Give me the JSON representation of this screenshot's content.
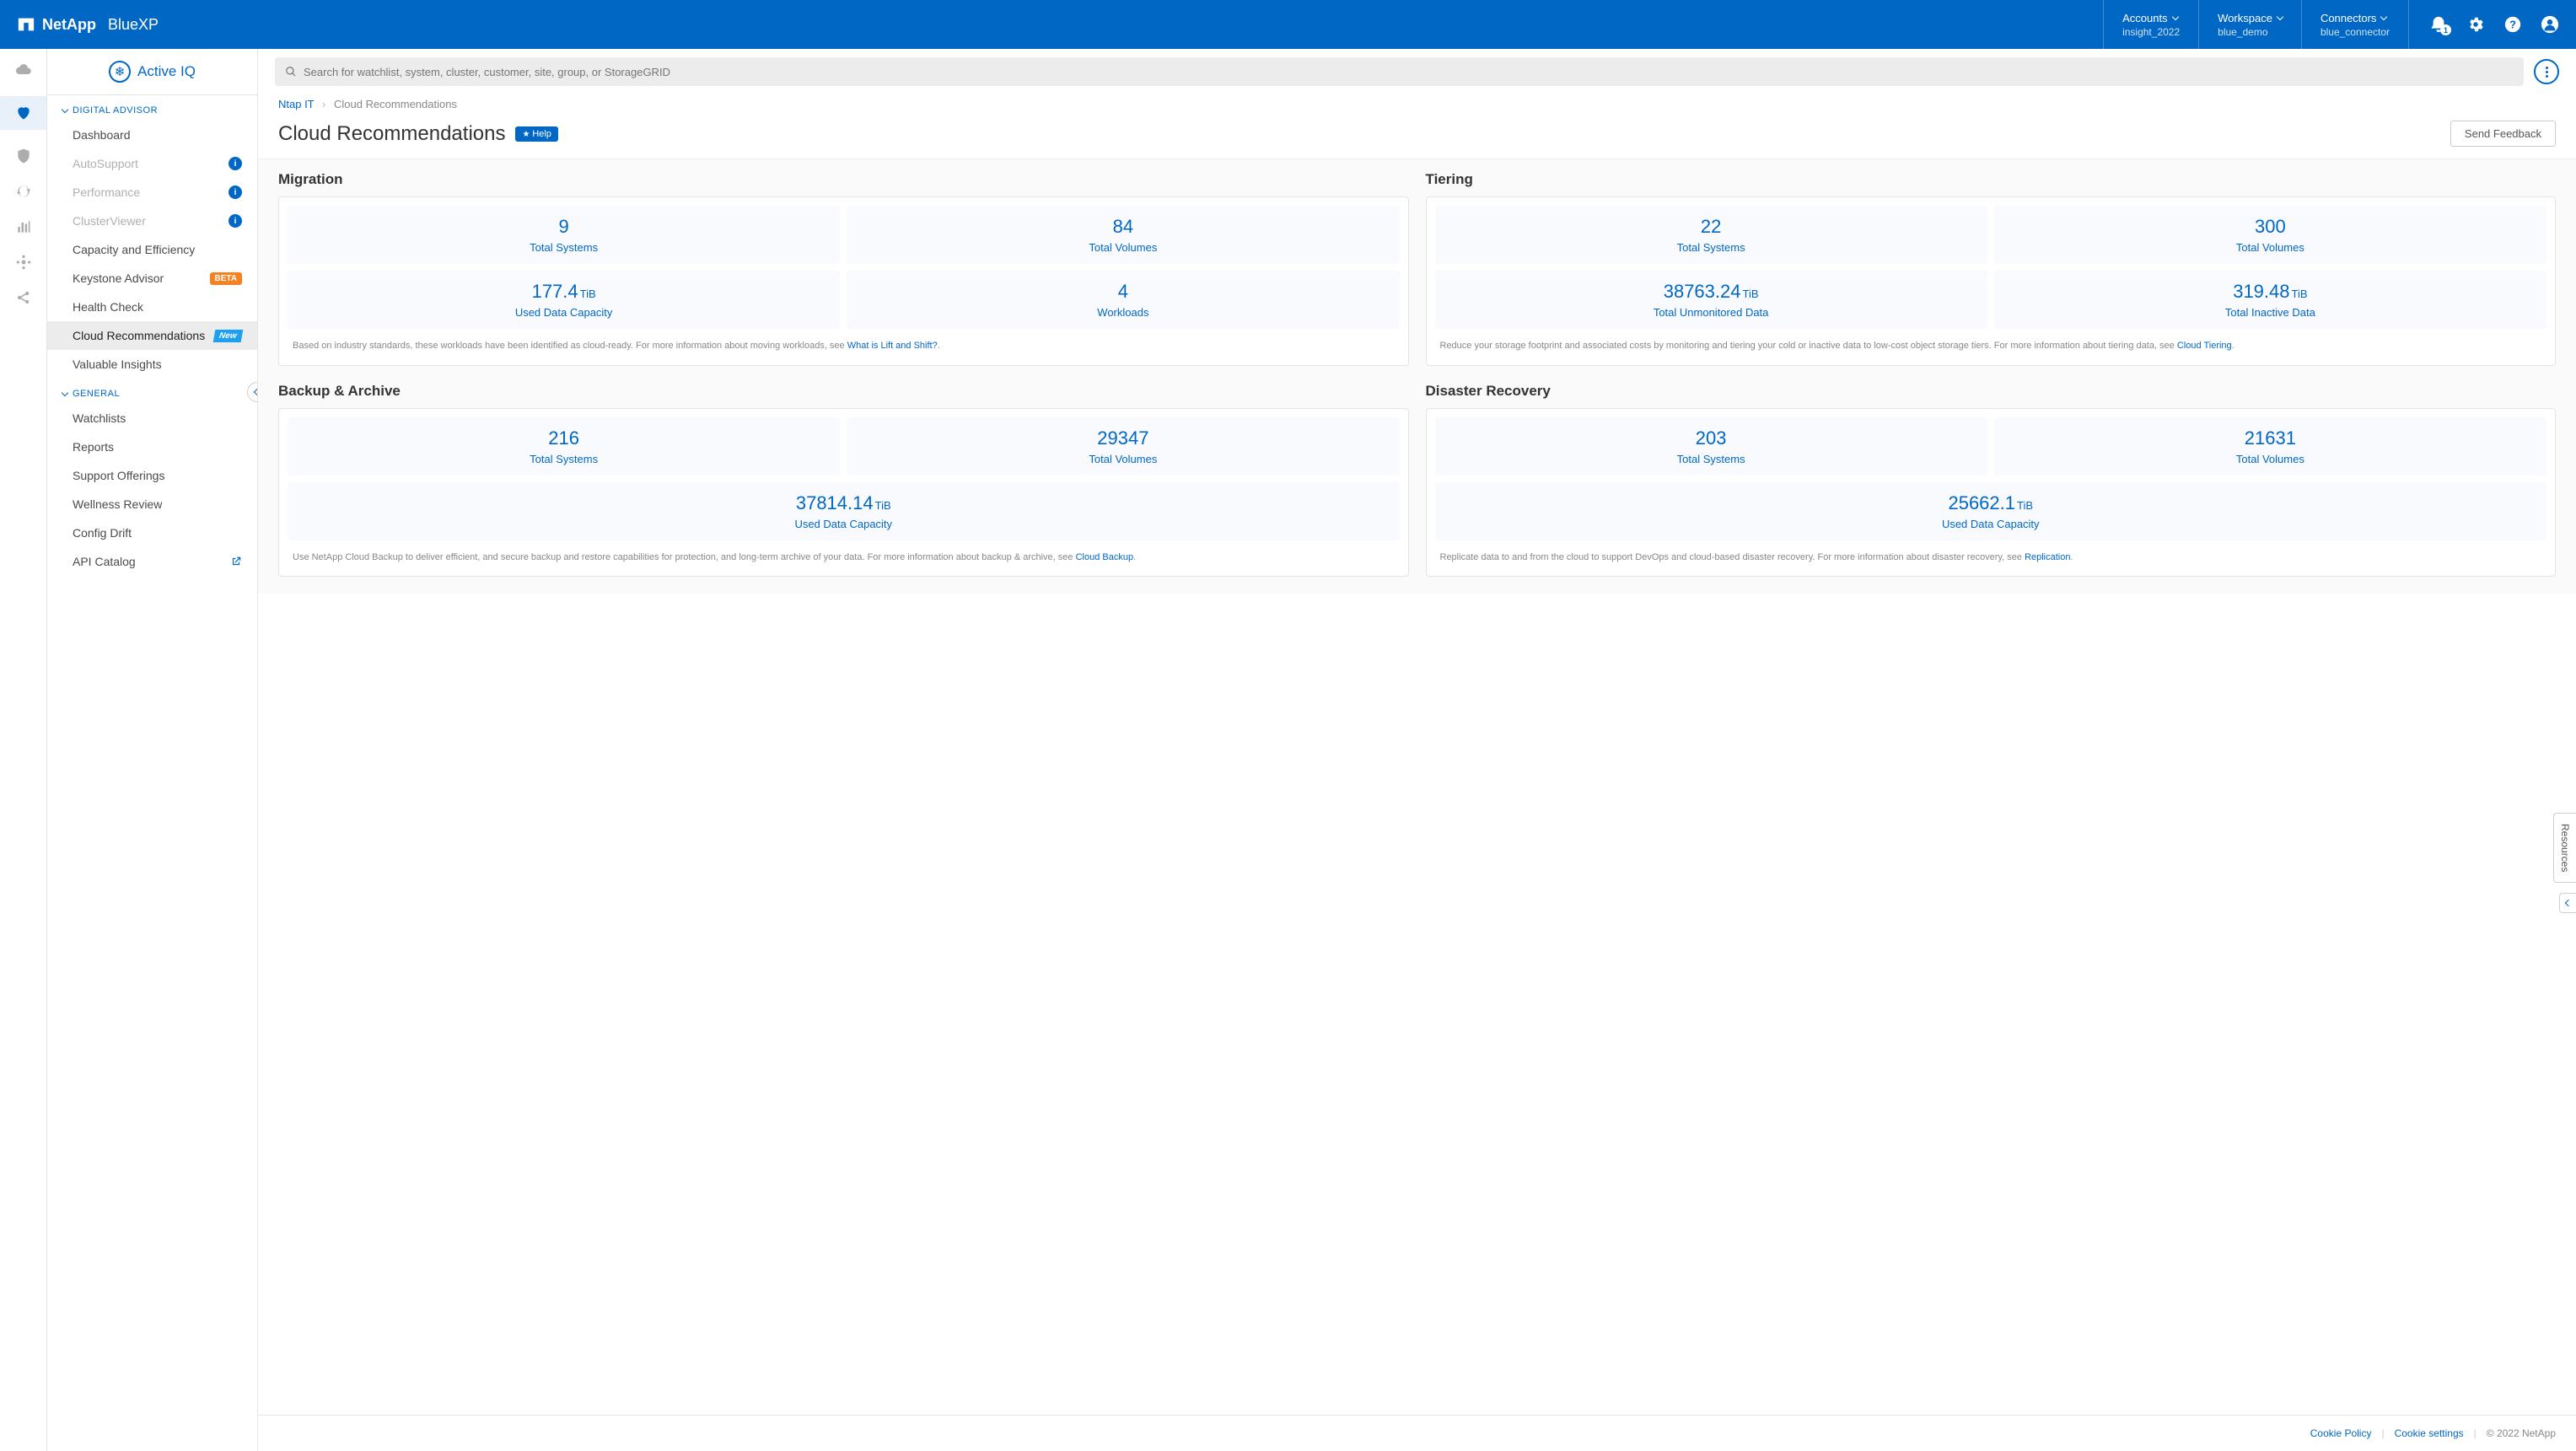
{
  "header": {
    "brand_main": "NetApp",
    "brand_product": "BlueXP",
    "selectors": [
      {
        "label": "Accounts",
        "value": "insight_2022"
      },
      {
        "label": "Workspace",
        "value": "blue_demo"
      },
      {
        "label": "Connectors",
        "value": "blue_connector"
      }
    ],
    "notif_count": "1"
  },
  "sidebar": {
    "product": "Active IQ",
    "sections": [
      {
        "title": "DIGITAL ADVISOR",
        "items": [
          {
            "label": "Dashboard"
          },
          {
            "label": "AutoSupport",
            "disabled": true,
            "info": true
          },
          {
            "label": "Performance",
            "disabled": true,
            "info": true
          },
          {
            "label": "ClusterViewer",
            "disabled": true,
            "info": true
          },
          {
            "label": "Capacity and Efficiency"
          },
          {
            "label": "Keystone Advisor",
            "beta": true
          },
          {
            "label": "Health Check"
          },
          {
            "label": "Cloud Recommendations",
            "active": true,
            "new": true
          },
          {
            "label": "Valuable Insights"
          }
        ]
      },
      {
        "title": "GENERAL",
        "items": [
          {
            "label": "Watchlists"
          },
          {
            "label": "Reports"
          },
          {
            "label": "Support Offerings"
          },
          {
            "label": "Wellness Review"
          },
          {
            "label": "Config Drift"
          },
          {
            "label": "API Catalog",
            "external": true
          }
        ]
      }
    ]
  },
  "search": {
    "placeholder": "Search for watchlist, system, cluster, customer, site, group, or StorageGRID"
  },
  "breadcrumb": {
    "root": "Ntap IT",
    "current": "Cloud Recommendations"
  },
  "page": {
    "title": "Cloud Recommendations",
    "help": "Help",
    "feedback": "Send Feedback"
  },
  "cards": {
    "migration": {
      "title": "Migration",
      "stats_top": [
        {
          "value": "9",
          "unit": "",
          "label": "Total Systems"
        },
        {
          "value": "84",
          "unit": "",
          "label": "Total Volumes"
        }
      ],
      "stats_bottom": [
        {
          "value": "177.4",
          "unit": "TiB",
          "label": "Used Data Capacity"
        },
        {
          "value": "4",
          "unit": "",
          "label": "Workloads"
        }
      ],
      "footer_pre": "Based on industry standards, these workloads have been identified as cloud-ready. For more information about moving workloads, see ",
      "footer_link": "What is Lift and Shift?",
      "footer_post": "."
    },
    "tiering": {
      "title": "Tiering",
      "stats_top": [
        {
          "value": "22",
          "unit": "",
          "label": "Total Systems"
        },
        {
          "value": "300",
          "unit": "",
          "label": "Total Volumes"
        }
      ],
      "stats_bottom": [
        {
          "value": "38763.24",
          "unit": "TiB",
          "label": "Total Unmonitored Data"
        },
        {
          "value": "319.48",
          "unit": "TiB",
          "label": "Total Inactive Data"
        }
      ],
      "footer_pre": "Reduce your storage footprint and associated costs by monitoring and tiering your cold or inactive data to low-cost object storage tiers. For more information about tiering data, see ",
      "footer_link": "Cloud Tiering",
      "footer_post": "."
    },
    "backup": {
      "title": "Backup & Archive",
      "stats_top": [
        {
          "value": "216",
          "unit": "",
          "label": "Total Systems"
        },
        {
          "value": "29347",
          "unit": "",
          "label": "Total Volumes"
        }
      ],
      "stats_wide": [
        {
          "value": "37814.14",
          "unit": "TiB",
          "label": "Used Data Capacity"
        }
      ],
      "footer_pre": "Use NetApp Cloud Backup to deliver efficient, and secure backup and restore capabilities for protection, and long-term archive of your data. For more information about backup & archive, see ",
      "footer_link": "Cloud Backup",
      "footer_post": "."
    },
    "dr": {
      "title": "Disaster Recovery",
      "stats_top": [
        {
          "value": "203",
          "unit": "",
          "label": "Total Systems"
        },
        {
          "value": "21631",
          "unit": "",
          "label": "Total Volumes"
        }
      ],
      "stats_wide": [
        {
          "value": "25662.1",
          "unit": "TiB",
          "label": "Used Data Capacity"
        }
      ],
      "footer_pre": "Replicate data to and from the cloud to support DevOps and cloud-based disaster recovery. For more information about disaster recovery, see ",
      "footer_link": "Replication",
      "footer_post": "."
    }
  },
  "footer": {
    "cookie_policy": "Cookie Policy",
    "cookie_settings": "Cookie settings",
    "copyright": "© 2022 NetApp"
  },
  "resources_tab": "Resources",
  "beta_label": "BETA",
  "new_label": "New"
}
